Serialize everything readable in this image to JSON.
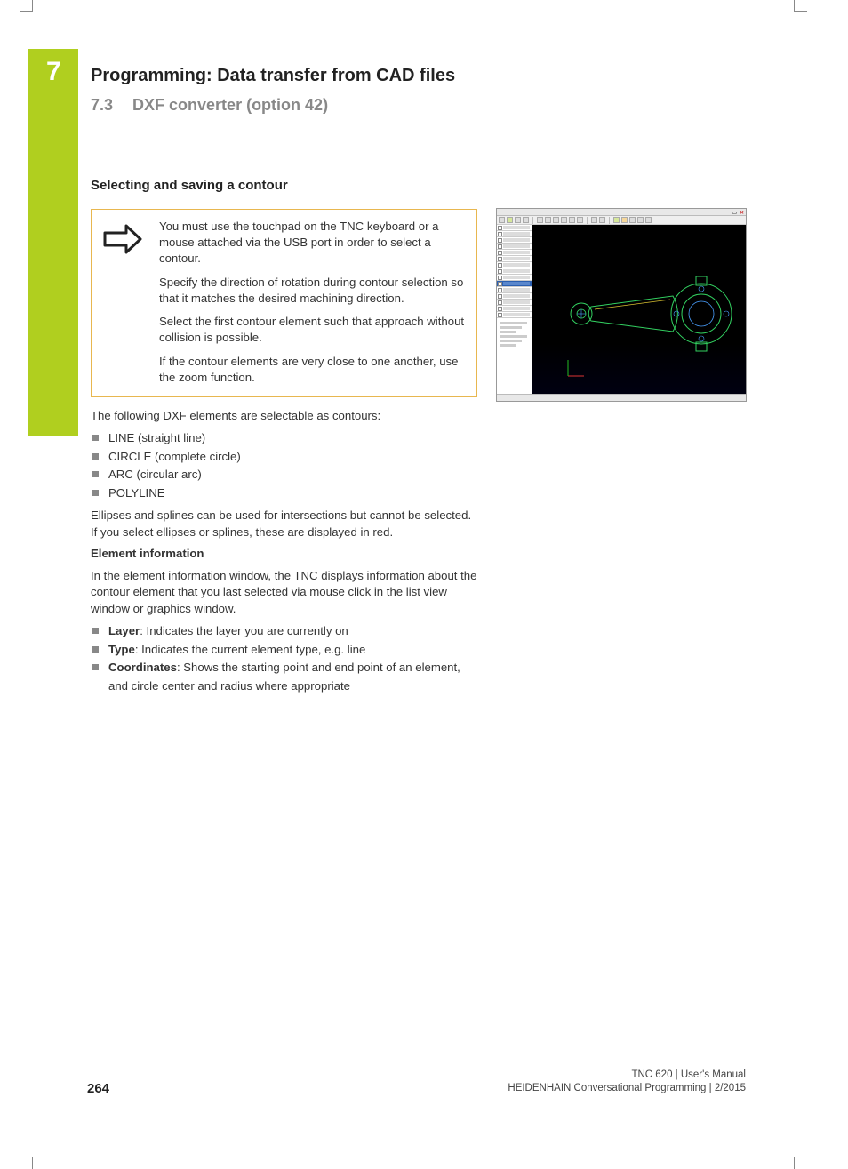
{
  "chapter": {
    "number": "7",
    "title": "Programming: Data transfer from CAD files",
    "section_number": "7.3",
    "section_title": "DXF converter (option 42)"
  },
  "heading": "Selecting and saving a contour",
  "note": {
    "paras": [
      "You must use the touchpad on the TNC keyboard or a mouse attached via the USB port in order to select a contour.",
      "Specify the direction of rotation during contour selection so that it matches the desired machining direction.",
      "Select the first contour element such that approach without collision is possible.",
      "If the contour elements are very close to one another, use the zoom function."
    ]
  },
  "body": {
    "intro": "The following DXF elements are selectable as contours:",
    "elements": [
      "LINE (straight line)",
      "CIRCLE (complete circle)",
      "ARC (circular arc)",
      "POLYLINE"
    ],
    "ellipse_note": "Ellipses and splines can be used for intersections but cannot be selected. If you select ellipses or splines, these are displayed in red.",
    "element_info_heading": "Element information",
    "element_info_para": "In the element information window, the TNC displays information about the contour element that you last selected via mouse click in the list view window or graphics window.",
    "info_items": [
      {
        "term": "Layer",
        "desc": ": Indicates the layer you are currently on"
      },
      {
        "term": "Type",
        "desc": ": Indicates the current element type, e.g. line"
      },
      {
        "term": "Coordinates",
        "desc": ": Shows the starting point and end point of an element, and circle center and radius where appropriate"
      }
    ]
  },
  "screenshot": {
    "rows_before_sel": 9,
    "rows_after_sel": 5,
    "cad_colors": {
      "bg": "#000000",
      "axis_x": "#d33",
      "axis_y": "#2b2",
      "part_outline": "#32d060",
      "circle": "#4aa0ff",
      "highlight": "#d8c030"
    }
  },
  "footer": {
    "page": "264",
    "line1": "TNC 620 | User's Manual",
    "line2": "HEIDENHAIN Conversational Programming | 2/2015"
  },
  "style": {
    "accent_bar": "#b0cf1f",
    "note_border": "#e8b74f",
    "section_gray": "#888888",
    "bullet_gray": "#888888"
  }
}
